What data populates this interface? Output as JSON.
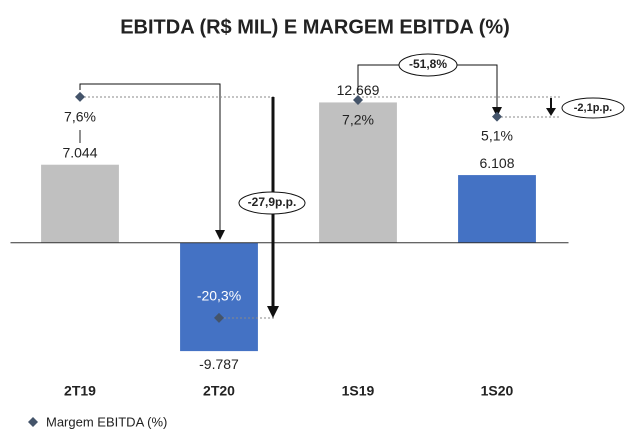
{
  "chart_data": {
    "type": "bar",
    "title": "EBITDA (R$ MIL) E MARGEM EBITDA (%)",
    "categories": [
      "2T19",
      "2T20",
      "1S19",
      "1S20"
    ],
    "values": [
      7044,
      -9787,
      12669,
      6108
    ],
    "value_labels": [
      "7.044",
      "-9.787",
      "12.669",
      "6.108"
    ],
    "colors": [
      "#c0c0c0",
      "#4472c4",
      "#c0c0c0",
      "#4472c4"
    ],
    "ylim": [
      -10500,
      16500
    ],
    "series": [
      {
        "name": "Margem EBITDA (%)",
        "color": "#44546a",
        "axis": "y2",
        "values": [
          7.6,
          -20.3,
          7.2,
          5.1
        ],
        "value_labels": [
          "7,6%",
          "-20,3%",
          "7,2%",
          "5,1%"
        ]
      }
    ],
    "y2lim": [
      -25.5,
      12.25
    ],
    "annotations": [
      "-27,9p.p.",
      "-51,8%",
      "-2,1p.p."
    ]
  }
}
